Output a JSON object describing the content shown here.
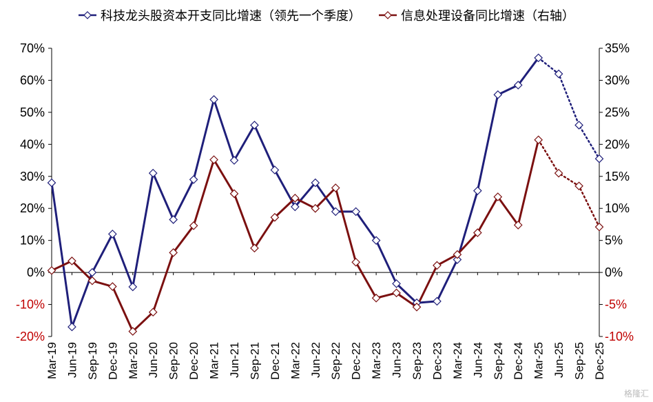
{
  "chart_data": {
    "type": "line",
    "title": "",
    "legend_position": "top",
    "categories": [
      "Mar-19",
      "Jun-19",
      "Sep-19",
      "Dec-19",
      "Mar-20",
      "Jun-20",
      "Sep-20",
      "Dec-20",
      "Mar-21",
      "Jun-21",
      "Sep-21",
      "Dec-21",
      "Mar-22",
      "Jun-22",
      "Sep-22",
      "Dec-22",
      "Mar-23",
      "Jun-23",
      "Sep-23",
      "Dec-23",
      "Mar-24",
      "Jun-24",
      "Sep-24",
      "Dec-24",
      "Mar-25",
      "Jun-25",
      "Sep-25",
      "Dec-25"
    ],
    "left_axis": {
      "ylim": [
        -20,
        70
      ],
      "ticks": [
        "70%",
        "60%",
        "50%",
        "40%",
        "30%",
        "20%",
        "10%",
        "0%",
        "-10%",
        "-20%"
      ],
      "tick_values": [
        70,
        60,
        50,
        40,
        30,
        20,
        10,
        0,
        -10,
        -20
      ],
      "negative_tick_color": "#c00000"
    },
    "right_axis": {
      "ylim": [
        -10,
        35
      ],
      "ticks": [
        "35%",
        "30%",
        "25%",
        "20%",
        "15%",
        "10%",
        "5%",
        "0%",
        "-5%",
        "-10%"
      ],
      "tick_values": [
        35,
        30,
        25,
        20,
        15,
        10,
        5,
        0,
        -5,
        -10
      ],
      "negative_tick_color": "#c00000"
    },
    "grid": false,
    "series": [
      {
        "name": "科技龙头股资本开支同比增速（领先一个季度）",
        "axis": "left",
        "color": "#1f1f7a",
        "values": [
          28,
          -17,
          0,
          12,
          -4.5,
          31,
          16.5,
          29,
          54,
          35,
          46,
          32,
          20.5,
          28,
          19,
          19,
          10,
          -3.5,
          -9.5,
          -9,
          4,
          25.5,
          55.5,
          58.5,
          67,
          62,
          46,
          35.5
        ],
        "dashed_from_index": 24
      },
      {
        "name": "信息处理设备同比增速（右轴）",
        "axis": "right",
        "color": "#7b1010",
        "values": [
          0.3,
          1.8,
          -1.3,
          -2.2,
          -9.2,
          -6.2,
          3.1,
          7.3,
          17.6,
          12.3,
          3.8,
          8.6,
          11.6,
          10.0,
          13.2,
          1.6,
          -4.0,
          -3.2,
          -5.4,
          1.1,
          2.8,
          6.2,
          11.8,
          7.4,
          20.7,
          15.5,
          13.5,
          7.1
        ],
        "dashed_from_index": 24
      }
    ]
  },
  "watermark": "格隆汇"
}
